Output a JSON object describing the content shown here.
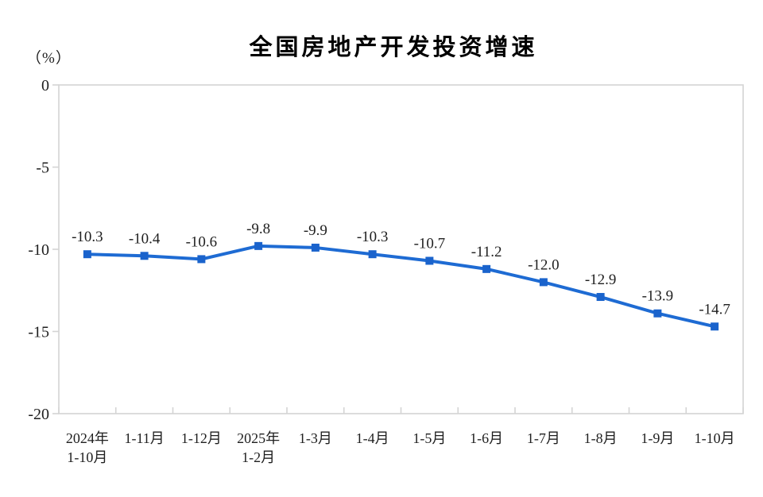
{
  "page": {
    "background_color": "#ffffff"
  },
  "chart_data": {
    "type": "line",
    "title": "全国房地产开发投资增速",
    "unit_label": "（%）",
    "categories": [
      [
        "2024年",
        "1-10月"
      ],
      [
        "1-11月"
      ],
      [
        "1-12月"
      ],
      [
        "2025年",
        "1-2月"
      ],
      [
        "1-3月"
      ],
      [
        "1-4月"
      ],
      [
        "1-5月"
      ],
      [
        "1-6月"
      ],
      [
        "1-7月"
      ],
      [
        "1-8月"
      ],
      [
        "1-9月"
      ],
      [
        "1-10月"
      ]
    ],
    "values": [
      -10.3,
      -10.4,
      -10.6,
      -9.8,
      -9.9,
      -10.3,
      -10.7,
      -11.2,
      -12.0,
      -12.9,
      -13.9,
      -14.7
    ],
    "data_labels": [
      "-10.3",
      "-10.4",
      "-10.6",
      "-9.8",
      "-9.9",
      "-10.3",
      "-10.7",
      "-11.2",
      "-12.0",
      "-12.9",
      "-13.9",
      "-14.7"
    ],
    "yticks": [
      0,
      -5,
      -10,
      -15,
      -20
    ],
    "ytick_labels": [
      "0",
      "-5",
      "-10",
      "-15",
      "-20"
    ],
    "ylim": [
      -20,
      0
    ],
    "grid": false,
    "legend": null,
    "colors": {
      "line": "#1e6bd3",
      "marker": "#1a63cc",
      "axis": "#d4d4d4",
      "text": "#1f1f1f",
      "title": "#000000"
    },
    "marker_shape": "square"
  }
}
